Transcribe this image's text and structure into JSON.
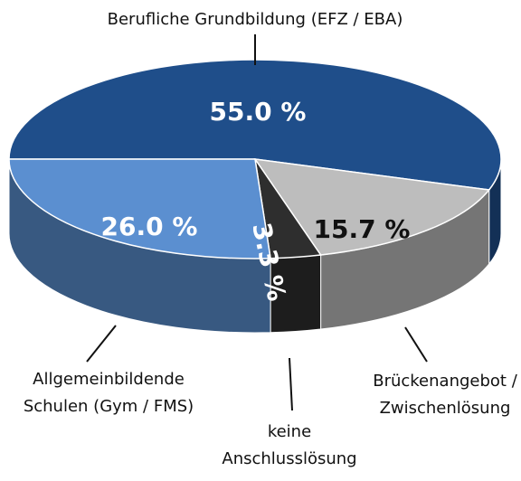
{
  "chart_data": {
    "type": "pie3d",
    "categories": [
      [
        "Berufliche Grundbildung (EFZ / EBA)"
      ],
      [
        "Brückenangebot /",
        "Zwischenlösung"
      ],
      [
        "keine",
        "Anschlusslösung"
      ],
      [
        "Allgemeinbildende",
        "Schulen (Gym / FMS)"
      ]
    ],
    "values": [
      55.0,
      15.7,
      3.3,
      26.0
    ],
    "value_labels": [
      "55.0 %",
      "15.7 %",
      "3.3 %",
      "26.0 %"
    ],
    "colors": [
      "#1f4e8a",
      "#bdbdbd",
      "#2e2e2e",
      "#5b8fd0"
    ]
  }
}
